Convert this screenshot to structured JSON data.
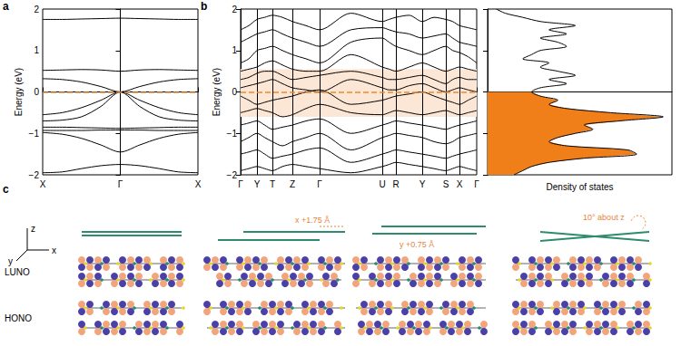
{
  "chart_data": [
    {
      "label": "a",
      "type": "line",
      "ylabel": "Energy (eV)",
      "color": "#000000",
      "x": [
        -1,
        -0.75,
        -0.5,
        -0.25,
        0,
        0.25,
        0.5,
        0.75,
        1
      ],
      "series": [
        {
          "values": [
            1.75,
            1.75,
            1.76,
            1.77,
            1.78,
            1.77,
            1.76,
            1.75,
            1.75
          ]
        },
        {
          "values": [
            0.52,
            0.53,
            0.54,
            0.53,
            0.5,
            0.53,
            0.54,
            0.53,
            0.52
          ]
        },
        {
          "values": [
            0.32,
            0.3,
            0.24,
            0.13,
            0.0,
            0.13,
            0.24,
            0.3,
            0.32
          ]
        },
        {
          "values": [
            -0.55,
            -0.5,
            -0.38,
            -0.2,
            0.0,
            -0.2,
            -0.38,
            -0.5,
            -0.55
          ]
        },
        {
          "values": [
            -0.7,
            -0.68,
            -0.6,
            -0.35,
            0.0,
            -0.35,
            -0.6,
            -0.68,
            -0.7
          ]
        },
        {
          "values": [
            -0.85,
            -0.85,
            -0.86,
            -0.87,
            -0.88,
            -0.87,
            -0.86,
            -0.85,
            -0.85
          ]
        },
        {
          "values": [
            -0.93,
            -0.93,
            -0.93,
            -0.92,
            -0.92,
            -0.92,
            -0.93,
            -0.93,
            -0.93
          ]
        },
        {
          "values": [
            -0.98,
            -1.02,
            -1.12,
            -1.28,
            -1.45,
            -1.28,
            -1.12,
            -1.02,
            -0.98
          ]
        },
        {
          "values": [
            -1.95,
            -1.93,
            -1.85,
            -1.78,
            -1.75,
            -1.78,
            -1.85,
            -1.93,
            -1.95
          ]
        }
      ],
      "xlim": [
        -1,
        1
      ],
      "xticks": [
        {
          "value": -1,
          "label": "X"
        },
        {
          "value": 0,
          "label": "Γ"
        },
        {
          "value": 1,
          "label": "X"
        }
      ],
      "ylim": [
        -2,
        2
      ],
      "yticks": [
        {
          "value": -2,
          "label": "−2"
        },
        {
          "value": -1,
          "label": "−1"
        },
        0,
        1,
        2
      ],
      "fermi_level": {
        "value": 0,
        "color": "#f08a24",
        "line_style": "dashed"
      }
    },
    {
      "label": "b",
      "type": "line",
      "ylabel": "Energy (eV)",
      "color": "#000000",
      "x": [
        0,
        0.9,
        1.8,
        2.65,
        3.5,
        4.6,
        5.7,
        7.2,
        8.7,
        12.15,
        15.6,
        16.35,
        17.1,
        18.55,
        20,
        21.3,
        22.6,
        23.35,
        24.1,
        25.05,
        26
      ],
      "series": [
        {
          "values": [
            1.5,
            1.6,
            1.75,
            1.8,
            1.85,
            1.8,
            1.7,
            1.6,
            1.5,
            1.9,
            1.7,
            1.75,
            1.8,
            1.85,
            1.7,
            1.8,
            1.75,
            1.7,
            1.6,
            1.55,
            1.5
          ]
        },
        {
          "values": [
            1.2,
            1.3,
            1.4,
            1.45,
            1.5,
            1.4,
            1.3,
            1.2,
            1.1,
            1.5,
            1.55,
            1.5,
            1.45,
            1.4,
            1.3,
            1.35,
            1.4,
            1.3,
            1.2,
            1.15,
            1.1
          ]
        },
        {
          "values": [
            0.7,
            0.8,
            1.0,
            1.05,
            1.1,
            1.0,
            0.9,
            0.8,
            0.7,
            1.2,
            1.3,
            1.2,
            1.1,
            1.0,
            0.9,
            1.0,
            1.1,
            1.0,
            0.95,
            0.85,
            0.7
          ]
        },
        {
          "values": [
            0.5,
            0.55,
            0.6,
            0.7,
            0.75,
            0.65,
            0.55,
            0.5,
            0.5,
            0.9,
            0.6,
            0.55,
            0.5,
            0.6,
            0.7,
            0.6,
            0.5,
            0.55,
            0.6,
            0.55,
            0.5
          ]
        },
        {
          "values": [
            0.3,
            0.35,
            0.45,
            0.5,
            0.5,
            0.4,
            0.3,
            0.35,
            0.4,
            0.5,
            0.35,
            0.3,
            0.3,
            0.35,
            0.4,
            0.3,
            0.2,
            0.3,
            0.35,
            0.3,
            0.3
          ]
        },
        {
          "values": [
            0.1,
            0.15,
            0.2,
            0.25,
            0.3,
            0.2,
            0.1,
            0.05,
            0.0,
            0.3,
            0.1,
            0.05,
            0.05,
            0.15,
            0.2,
            0.1,
            0.0,
            0.05,
            0.1,
            0.05,
            0.0
          ]
        },
        {
          "values": [
            -0.1,
            -0.2,
            -0.3,
            -0.25,
            -0.2,
            -0.15,
            -0.1,
            0.0,
            0.05,
            -0.3,
            -0.2,
            -0.15,
            -0.1,
            -0.05,
            0.0,
            -0.1,
            -0.2,
            -0.25,
            -0.3,
            -0.2,
            -0.1
          ]
        },
        {
          "values": [
            -0.5,
            -0.45,
            -0.4,
            -0.45,
            -0.5,
            -0.6,
            -0.55,
            -0.4,
            -0.3,
            -0.5,
            -0.55,
            -0.5,
            -0.45,
            -0.5,
            -0.55,
            -0.5,
            -0.45,
            -0.5,
            -0.55,
            -0.5,
            -0.45
          ]
        },
        {
          "values": [
            -0.8,
            -0.75,
            -0.7,
            -0.8,
            -0.9,
            -0.85,
            -0.8,
            -0.7,
            -0.65,
            -1.0,
            -0.8,
            -0.75,
            -0.7,
            -0.75,
            -0.8,
            -0.85,
            -0.9,
            -0.85,
            -0.8,
            -0.75,
            -0.7
          ]
        },
        {
          "values": [
            -1.2,
            -1.1,
            -1.0,
            -1.1,
            -1.2,
            -1.3,
            -1.2,
            -1.1,
            -1.0,
            -1.4,
            -1.1,
            -1.05,
            -1.0,
            -1.05,
            -1.1,
            -1.2,
            -1.25,
            -1.2,
            -1.1,
            -1.05,
            -1.0
          ]
        },
        {
          "values": [
            -1.5,
            -1.45,
            -1.4,
            -1.5,
            -1.6,
            -1.55,
            -1.5,
            -1.4,
            -1.35,
            -1.7,
            -1.5,
            -1.45,
            -1.4,
            -1.45,
            -1.5,
            -1.55,
            -1.6,
            -1.55,
            -1.5,
            -1.45,
            -1.4
          ]
        },
        {
          "values": [
            -1.9,
            -1.85,
            -1.8,
            -1.85,
            -1.9,
            -1.8,
            -1.75,
            -1.8,
            -1.85,
            -1.95,
            -1.8,
            -1.75,
            -1.7,
            -1.75,
            -1.8,
            -1.85,
            -1.9,
            -1.85,
            -1.8,
            -1.85,
            -1.9
          ]
        }
      ],
      "xlim": [
        0,
        26
      ],
      "xticks": [
        {
          "value": 0,
          "label": "Γ"
        },
        {
          "value": 1.8,
          "label": "Y"
        },
        {
          "value": 3.5,
          "label": "T"
        },
        {
          "value": 5.7,
          "label": "Z"
        },
        {
          "value": 8.7,
          "label": "Γ"
        },
        {
          "value": 15.6,
          "label": "U"
        },
        {
          "value": 17.1,
          "label": "R"
        },
        {
          "value": 20,
          "label": "Y"
        },
        {
          "value": 22.6,
          "label": "S"
        },
        {
          "value": 24.1,
          "label": "X"
        },
        {
          "value": 26,
          "label": "Γ"
        }
      ],
      "ylim": [
        -2,
        2
      ],
      "yticks": [
        {
          "value": -2,
          "label": "−2"
        },
        {
          "value": -1,
          "label": "−1"
        },
        0,
        1,
        2
      ],
      "fermi_level": {
        "value": 0,
        "color": "#f08a24",
        "line_style": "dashed"
      },
      "highlight": {
        "range": [
          -0.6,
          0.55
        ],
        "color": "#fce6d6"
      }
    },
    {
      "type": "area",
      "xlabel": "Density of states",
      "color": "#000000",
      "tick_labels": false,
      "energy": [
        -2.0,
        -1.9,
        -1.8,
        -1.7,
        -1.6,
        -1.5,
        -1.4,
        -1.3,
        -1.2,
        -1.1,
        -1.0,
        -0.9,
        -0.8,
        -0.7,
        -0.6,
        -0.5,
        -0.4,
        -0.3,
        -0.2,
        -0.1,
        0.0,
        0.1,
        0.2,
        0.3,
        0.4,
        0.5,
        0.6,
        0.7,
        0.8,
        0.9,
        1.0,
        1.1,
        1.2,
        1.3,
        1.4,
        1.5,
        1.6,
        1.7,
        1.8,
        1.9,
        2.0
      ],
      "values": [
        0.15,
        0.2,
        0.25,
        0.35,
        0.55,
        0.85,
        0.8,
        0.45,
        0.35,
        0.4,
        0.5,
        0.6,
        0.55,
        0.75,
        1.0,
        0.7,
        0.45,
        0.35,
        0.4,
        0.3,
        0.25,
        0.3,
        0.45,
        0.35,
        0.5,
        0.4,
        0.3,
        0.35,
        0.2,
        0.25,
        0.3,
        0.45,
        0.4,
        0.3,
        0.45,
        0.35,
        0.5,
        0.3,
        0.2,
        0.1,
        0.05
      ],
      "fill": {
        "max_energy": 0,
        "color": "#f07f1a"
      },
      "xlim": [
        0,
        1.05
      ],
      "ylim": [
        -2,
        2
      ],
      "yticks": [
        {
          "value": -2,
          "label": "−2"
        },
        {
          "value": -1,
          "label": "−1"
        },
        0,
        1,
        2
      ]
    }
  ],
  "diagram": {
    "label": "c",
    "axis_labels": [
      "z",
      "x",
      "y"
    ],
    "row_labels": [
      "LUNO",
      "HONO"
    ],
    "columns": [
      {
        "shift": null
      },
      {
        "shift": "x +1.75 Å"
      },
      {
        "shift": "y +0.75 Å"
      },
      {
        "shift": "10° about z"
      }
    ]
  }
}
